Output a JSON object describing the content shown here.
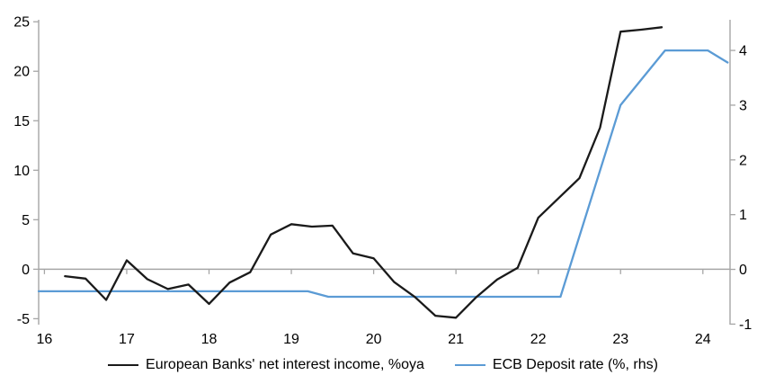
{
  "chart_data": {
    "type": "line",
    "title": "",
    "x_axis": {
      "min": 15.93,
      "max": 24.33,
      "ticks": [
        {
          "t": 16,
          "label": "16"
        },
        {
          "t": 17,
          "label": "17"
        },
        {
          "t": 18,
          "label": "18"
        },
        {
          "t": 19,
          "label": "19"
        },
        {
          "t": 20,
          "label": "20"
        },
        {
          "t": 21,
          "label": "21"
        },
        {
          "t": 22,
          "label": "22"
        },
        {
          "t": 23,
          "label": "23"
        },
        {
          "t": 24,
          "label": "24"
        }
      ]
    },
    "left_axis": {
      "min": -5.6,
      "max": 25.2,
      "ticks": [
        {
          "v": -5,
          "label": "-5"
        },
        {
          "v": 0,
          "label": "0"
        },
        {
          "v": 5,
          "label": "5"
        },
        {
          "v": 10,
          "label": "10"
        },
        {
          "v": 15,
          "label": "15"
        },
        {
          "v": 20,
          "label": "20"
        },
        {
          "v": 25,
          "label": "25"
        }
      ]
    },
    "right_axis": {
      "min": -1.01,
      "max": 4.56,
      "ticks": [
        {
          "v": -1,
          "label": "-1"
        },
        {
          "v": 0,
          "label": "0"
        },
        {
          "v": 1,
          "label": "1"
        },
        {
          "v": 2,
          "label": "2"
        },
        {
          "v": 3,
          "label": "3"
        },
        {
          "v": 4,
          "label": "4"
        }
      ]
    },
    "grid": "zero-line-only",
    "legend_position": "bottom-center",
    "colors": {
      "axis": "#a6a6a6",
      "zero_line": "#a6a6a6",
      "text": "#000000",
      "background": "#ffffff"
    },
    "series": [
      {
        "name": "European Banks' net interest income, %oya",
        "axis": "left",
        "color": "#1a1a1a",
        "points": [
          [
            16.25,
            -0.7
          ],
          [
            16.5,
            -0.95
          ],
          [
            16.75,
            -3.1
          ],
          [
            17.0,
            0.9
          ],
          [
            17.25,
            -1.0
          ],
          [
            17.5,
            -2.0
          ],
          [
            17.75,
            -1.55
          ],
          [
            18.0,
            -3.5
          ],
          [
            18.25,
            -1.35
          ],
          [
            18.5,
            -0.3
          ],
          [
            18.75,
            3.5
          ],
          [
            19.0,
            4.55
          ],
          [
            19.25,
            4.3
          ],
          [
            19.5,
            4.4
          ],
          [
            19.75,
            1.6
          ],
          [
            20.0,
            1.1
          ],
          [
            20.25,
            -1.3
          ],
          [
            20.5,
            -2.8
          ],
          [
            20.75,
            -4.7
          ],
          [
            21.0,
            -4.9
          ],
          [
            21.25,
            -2.8
          ],
          [
            21.5,
            -1.05
          ],
          [
            21.75,
            0.15
          ],
          [
            22.0,
            5.2
          ],
          [
            22.25,
            7.2
          ],
          [
            22.5,
            9.2
          ],
          [
            22.75,
            14.3
          ],
          [
            23.0,
            24.0
          ],
          [
            23.25,
            24.2
          ],
          [
            23.5,
            24.45
          ]
        ]
      },
      {
        "name": "ECB Deposit rate (%, rhs)",
        "axis": "right",
        "color": "#5b9bd5",
        "points": [
          [
            15.93,
            -0.4
          ],
          [
            19.2,
            -0.4
          ],
          [
            19.45,
            -0.5
          ],
          [
            22.27,
            -0.5
          ],
          [
            23.0,
            3.0
          ],
          [
            23.54,
            4.0
          ],
          [
            24.06,
            4.0
          ],
          [
            24.3,
            3.78
          ]
        ]
      }
    ]
  }
}
